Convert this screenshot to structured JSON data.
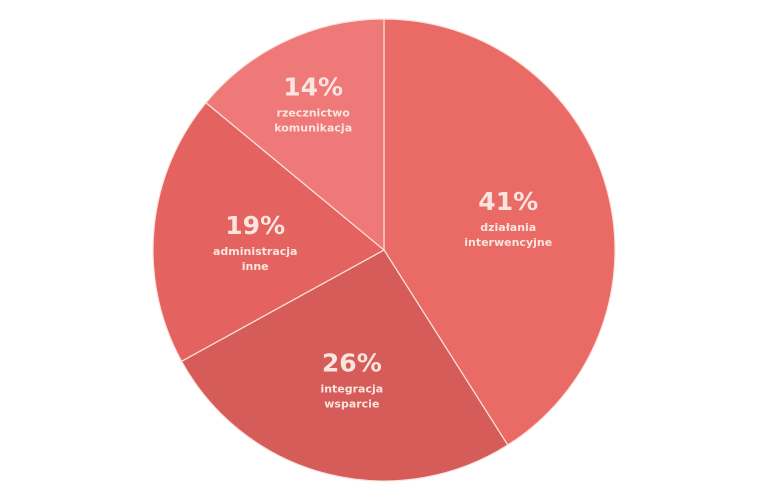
{
  "chart_data": {
    "type": "pie",
    "categories": [
      "działania\ninterwencyjne",
      "integracja\nwsparcie",
      "administracja\ninne",
      "rzecznictwo\nkomunikacja"
    ],
    "values": [
      41,
      26,
      19,
      14
    ],
    "value_labels": [
      "41%",
      "26%",
      "19%",
      "14%"
    ],
    "colors": [
      "#ea6a66",
      "#d55c58",
      "#e4625f",
      "#ef7878"
    ]
  }
}
